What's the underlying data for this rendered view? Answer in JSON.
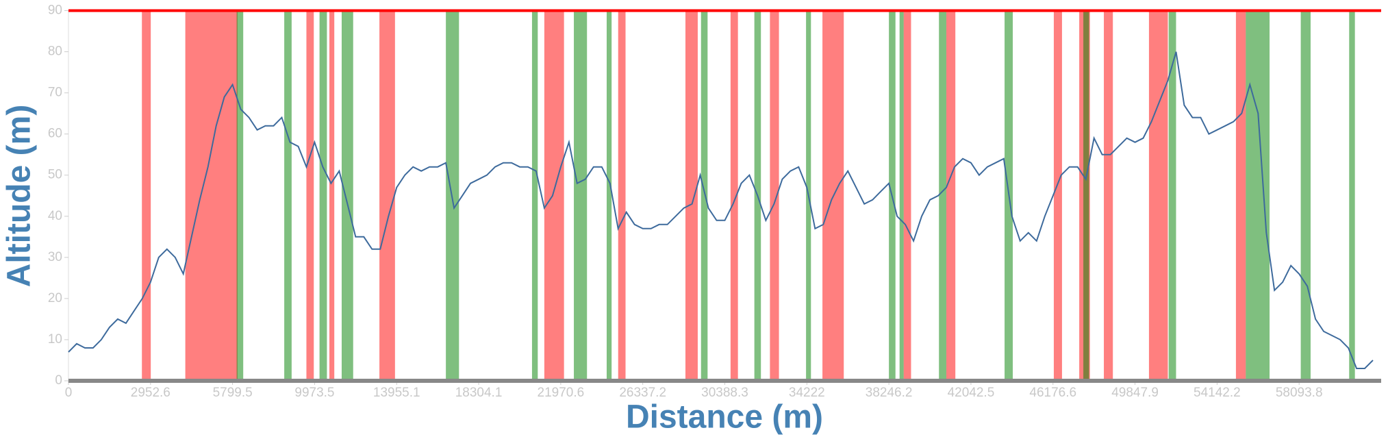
{
  "chart_data": {
    "type": "line",
    "x_label": "Distance (m)",
    "y_label": "Altitude (m)",
    "categories": [
      "0",
      null,
      null,
      null,
      null,
      null,
      null,
      null,
      null,
      null,
      "2952.6",
      null,
      null,
      null,
      null,
      null,
      null,
      null,
      null,
      null,
      "5799.5",
      null,
      null,
      null,
      null,
      null,
      null,
      null,
      null,
      null,
      "9973.5",
      null,
      null,
      null,
      null,
      null,
      null,
      null,
      null,
      null,
      "13955.1",
      null,
      null,
      null,
      null,
      null,
      null,
      null,
      null,
      null,
      "18304.1",
      null,
      null,
      null,
      null,
      null,
      null,
      null,
      null,
      null,
      "21970.6",
      null,
      null,
      null,
      null,
      null,
      null,
      null,
      null,
      null,
      "26337.2",
      null,
      null,
      null,
      null,
      null,
      null,
      null,
      null,
      null,
      "30388.3",
      null,
      null,
      null,
      null,
      null,
      null,
      null,
      null,
      null,
      "34222",
      null,
      null,
      null,
      null,
      null,
      null,
      null,
      null,
      null,
      "38246.2",
      null,
      null,
      null,
      null,
      null,
      null,
      null,
      null,
      null,
      "42042.5",
      null,
      null,
      null,
      null,
      null,
      null,
      null,
      null,
      null,
      "46176.6",
      null,
      null,
      null,
      null,
      null,
      null,
      null,
      null,
      null,
      "49847.9",
      null,
      null,
      null,
      null,
      null,
      null,
      null,
      null,
      null,
      "54142.2",
      null,
      null,
      null,
      null,
      null,
      null,
      null,
      null,
      null,
      "58093.8",
      null,
      null,
      null,
      null,
      null,
      null,
      null,
      null,
      null
    ],
    "values": [
      7,
      9,
      8,
      8,
      10,
      13,
      15,
      14,
      17,
      20,
      24,
      30,
      32,
      30,
      26,
      35,
      44,
      52,
      62,
      69,
      72,
      66,
      64,
      61,
      62,
      62,
      64,
      58,
      57,
      52,
      58,
      52,
      48,
      51,
      43,
      35,
      35,
      32,
      32,
      40,
      47,
      50,
      52,
      51,
      52,
      52,
      53,
      42,
      45,
      48,
      49,
      50,
      52,
      53,
      53,
      52,
      52,
      51,
      42,
      45,
      52,
      58,
      48,
      49,
      52,
      52,
      48,
      37,
      41,
      38,
      37,
      37,
      38,
      38,
      40,
      42,
      43,
      50,
      42,
      39,
      39,
      43,
      48,
      50,
      45,
      39,
      43,
      49,
      51,
      52,
      47,
      37,
      38,
      44,
      48,
      51,
      47,
      43,
      44,
      46,
      48,
      40,
      38,
      34,
      40,
      44,
      45,
      47,
      52,
      54,
      53,
      50,
      52,
      53,
      54,
      40,
      34,
      36,
      34,
      40,
      45,
      50,
      52,
      52,
      49,
      59,
      55,
      55,
      57,
      59,
      58,
      59,
      63,
      68,
      73,
      80,
      67,
      64,
      64,
      60,
      61,
      62,
      63,
      65,
      72,
      65,
      36,
      22,
      24,
      28,
      26,
      23,
      15,
      12,
      11,
      10,
      8,
      3,
      3,
      5
    ],
    "color": "#3d6a9c",
    "ylim": [
      0,
      90
    ],
    "yticks": [
      0,
      10,
      20,
      30,
      40,
      50,
      60,
      70,
      80,
      90
    ],
    "limit_line": {
      "value": 90,
      "color": "#ff0000"
    },
    "red_bands": {
      "color": "#ff0000",
      "ranges": [
        [
          8.95,
          10.03
        ],
        [
          14.24,
          20.6
        ],
        [
          29.0,
          29.9
        ],
        [
          31.8,
          32.4
        ],
        [
          37.9,
          39.8
        ],
        [
          58.0,
          60.4
        ],
        [
          67.0,
          67.9
        ],
        [
          75.2,
          76.7
        ],
        [
          80.7,
          81.6
        ],
        [
          85.5,
          86.6
        ],
        [
          91.9,
          94.5
        ],
        [
          101.8,
          102.7
        ],
        [
          107.0,
          108.1
        ],
        [
          120.1,
          121.1
        ],
        [
          123.2,
          124.5
        ],
        [
          126.2,
          127.3
        ],
        [
          131.7,
          134.0
        ],
        [
          142.3,
          143.5
        ]
      ]
    },
    "green_bands": {
      "color": "#008000",
      "ranges": [
        [
          20.5,
          21.3
        ],
        [
          26.3,
          27.2
        ],
        [
          30.6,
          31.5
        ],
        [
          33.3,
          34.7
        ],
        [
          46.0,
          47.6
        ],
        [
          56.5,
          57.2
        ],
        [
          61.6,
          63.2
        ],
        [
          65.6,
          66.2
        ],
        [
          77.1,
          77.9
        ],
        [
          83.6,
          84.4
        ],
        [
          89.9,
          90.5
        ],
        [
          100.0,
          100.8
        ],
        [
          101.3,
          101.8
        ],
        [
          106.1,
          107.0
        ],
        [
          114.1,
          115.1
        ],
        [
          123.7,
          124.4
        ],
        [
          134.1,
          135.0
        ],
        [
          143.5,
          146.4
        ],
        [
          150.2,
          151.4
        ],
        [
          156.1,
          156.8
        ]
      ]
    }
  }
}
